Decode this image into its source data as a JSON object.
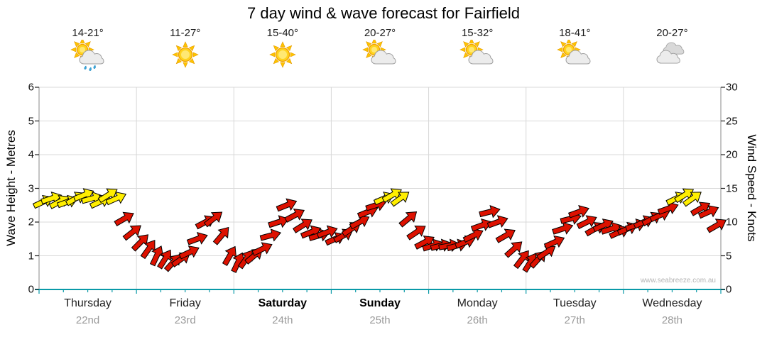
{
  "title": "7 day wind & wave forecast for Fairfield",
  "watermark": "www.seabreeze.com.au",
  "days": [
    {
      "name": "Thursday",
      "date": "22nd",
      "temp": "14-21°",
      "icon": "sun-cloud-rain",
      "bold": false
    },
    {
      "name": "Friday",
      "date": "23rd",
      "temp": "11-27°",
      "icon": "sun",
      "bold": false
    },
    {
      "name": "Saturday",
      "date": "24th",
      "temp": "15-40°",
      "icon": "sun",
      "bold": true
    },
    {
      "name": "Sunday",
      "date": "25th",
      "temp": "20-27°",
      "icon": "sun-cloud",
      "bold": true
    },
    {
      "name": "Monday",
      "date": "26th",
      "temp": "15-32°",
      "icon": "sun-cloud",
      "bold": false
    },
    {
      "name": "Tuesday",
      "date": "27th",
      "temp": "18-41°",
      "icon": "sun-cloud",
      "bold": false
    },
    {
      "name": "Wednesday",
      "date": "28th",
      "temp": "20-27°",
      "icon": "cloud",
      "bold": false
    }
  ],
  "chart_data": {
    "type": "wind-arrows",
    "points_per_day": 12,
    "step_hours": 2,
    "left_axis": {
      "label": "Wave Height - Metres",
      "min": 0,
      "max": 6,
      "ticks": [
        0,
        1,
        2,
        3,
        4,
        5,
        6
      ]
    },
    "right_axis": {
      "label": "Wind Speed - Knots",
      "min": 0,
      "max": 30,
      "ticks": [
        0,
        5,
        10,
        15,
        20,
        25,
        30
      ]
    },
    "strong_threshold_kts": 13,
    "colors": {
      "strong": "#ffee00",
      "moderate": "#dd1100",
      "axis_bottom": "#0a9aa8",
      "grid": "#d8d8d8"
    },
    "wind_kts": [
      13,
      13.5,
      13,
      13,
      13.5,
      14,
      13.5,
      13,
      14,
      13.5,
      10.5,
      8.5,
      7,
      6,
      5,
      4.5,
      4,
      4.5,
      5.5,
      7.5,
      10,
      10.5,
      8,
      5,
      4,
      4.5,
      5,
      6,
      8,
      10,
      12.5,
      11,
      9.5,
      8.5,
      8,
      8.5,
      7.5,
      8,
      9,
      10,
      11.5,
      12.5,
      13.5,
      14,
      13.5,
      10.5,
      8.5,
      7,
      6.5,
      6.5,
      6.5,
      6.5,
      7,
      8,
      9.5,
      11.5,
      10,
      8,
      6,
      4.5,
      4,
      4.5,
      5.5,
      7,
      9,
      10.5,
      11.5,
      10,
      9,
      9.5,
      9,
      8.5,
      9,
      9.5,
      10,
      10.5,
      11,
      12,
      13.5,
      14,
      13.5,
      12,
      11.5,
      9.5
    ],
    "wind_dir_deg": [
      -25,
      -18,
      -28,
      -20,
      -30,
      -22,
      -15,
      -25,
      -32,
      -24,
      -30,
      -38,
      -45,
      -55,
      -65,
      -58,
      -48,
      -35,
      -25,
      -20,
      -28,
      -38,
      -50,
      -60,
      -65,
      -55,
      -40,
      -25,
      -15,
      -18,
      -22,
      -28,
      -32,
      -22,
      -16,
      -20,
      -24,
      -30,
      -34,
      -28,
      -22,
      -18,
      -24,
      -30,
      -36,
      -40,
      -34,
      -28,
      -18,
      -14,
      -10,
      -16,
      -22,
      -26,
      -20,
      -14,
      -20,
      -30,
      -42,
      -52,
      -58,
      -48,
      -34,
      -24,
      -18,
      -14,
      -20,
      -26,
      -30,
      -24,
      -18,
      -24,
      -24,
      -18,
      -24,
      -30,
      -24,
      -20,
      -26,
      -32,
      -36,
      -30,
      -24,
      -30
    ]
  }
}
